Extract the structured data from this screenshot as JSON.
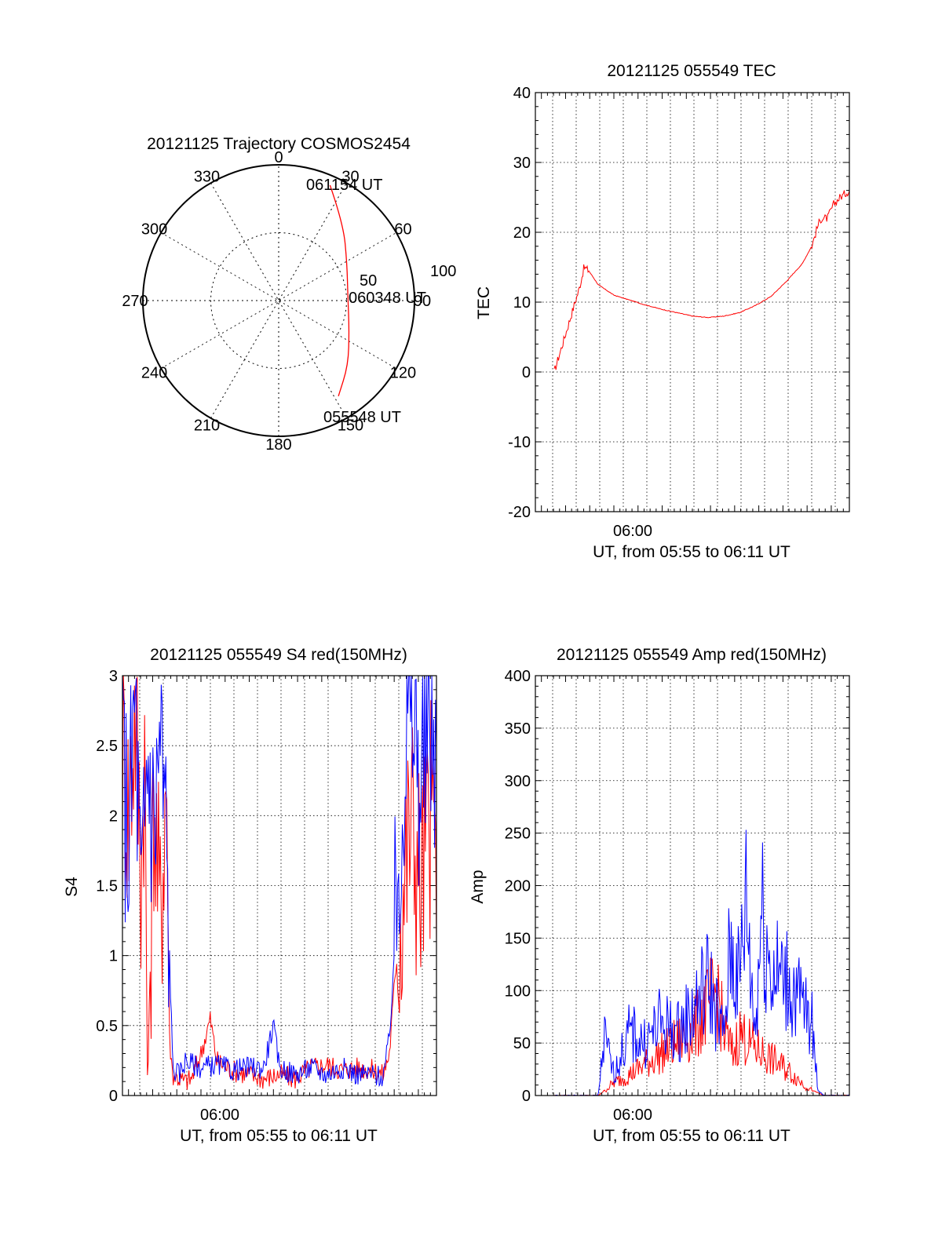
{
  "chart_data": [
    {
      "type": "polar",
      "title": "20121125 Trajectory COSMOS2454",
      "azimuth_labels": [
        "0",
        "30",
        "60",
        "90",
        "120",
        "150",
        "180",
        "210",
        "240",
        "270",
        "300",
        "330"
      ],
      "radial_labels": [
        "50",
        "100"
      ],
      "radial_max": 100,
      "grid": true,
      "trajectory_color": "#ff0000",
      "trajectory": [
        {
          "az": 24,
          "r": 93
        },
        {
          "az": 40,
          "r": 74
        },
        {
          "az": 62,
          "r": 57
        },
        {
          "az": 88,
          "r": 51
        },
        {
          "az": 112,
          "r": 56
        },
        {
          "az": 133,
          "r": 70
        },
        {
          "az": 148,
          "r": 83
        }
      ],
      "annotations": [
        "061154 UT",
        "060348 UT",
        "055548 UT"
      ]
    },
    {
      "type": "line",
      "title": "20121125 055549 TEC",
      "ylabel": "TEC",
      "xlabel": "UT, from 05:55 to 06:11 UT",
      "x_tick_labels": [
        "06:00"
      ],
      "ylim": [
        -20,
        40
      ],
      "yticks": [
        "40",
        "30",
        "20",
        "10",
        "0",
        "-10",
        "-20"
      ],
      "grid": true,
      "series": [
        {
          "color": "#ff0000",
          "x": [
            0.06,
            0.08,
            0.1,
            0.12,
            0.14,
            0.155,
            0.17,
            0.2,
            0.25,
            0.3,
            0.35,
            0.4,
            0.45,
            0.5,
            0.55,
            0.6,
            0.65,
            0.7,
            0.75,
            0.8,
            0.85,
            0.88,
            0.9,
            0.91,
            0.93,
            0.95,
            0.97,
            1.0
          ],
          "y": [
            0,
            3,
            6,
            9,
            12,
            15,
            14.5,
            12.5,
            11,
            10.3,
            9.6,
            9.0,
            8.5,
            8.0,
            7.8,
            8.0,
            8.5,
            9.5,
            10.8,
            13,
            15.5,
            18,
            21,
            22,
            22,
            24,
            25,
            26
          ]
        }
      ]
    },
    {
      "type": "line",
      "title": "20121125 055549 S4 red(150MHz)",
      "ylabel": "S4",
      "xlabel": "UT, from 05:55 to 06:11 UT",
      "x_tick_labels": [
        "06:00"
      ],
      "ylim": [
        0,
        3
      ],
      "yticks": [
        "3",
        "2.5",
        "2",
        "1.5",
        "1",
        "0.5",
        "0"
      ],
      "grid": true,
      "series": [
        {
          "color": "#ff0000",
          "x": [
            0.0,
            0.02,
            0.04,
            0.06,
            0.07,
            0.08,
            0.1,
            0.12,
            0.14,
            0.15,
            0.16,
            0.18,
            0.2,
            0.22,
            0.25,
            0.28,
            0.3,
            0.35,
            0.4,
            0.45,
            0.5,
            0.55,
            0.6,
            0.65,
            0.7,
            0.75,
            0.8,
            0.83,
            0.85,
            0.87,
            0.89,
            0.92,
            0.95,
            0.98,
            1.0
          ],
          "y": [
            2.5,
            2.0,
            2.8,
            1.6,
            2.6,
            0.0,
            2.2,
            1.2,
            2.4,
            0.4,
            0.15,
            0.12,
            0.1,
            0.12,
            0.3,
            0.55,
            0.25,
            0.18,
            0.15,
            0.12,
            0.15,
            0.12,
            0.2,
            0.22,
            0.18,
            0.2,
            0.18,
            0.15,
            0.3,
            0.9,
            1.4,
            2.0,
            1.5,
            2.0,
            1.8
          ]
        },
        {
          "color": "#0000ff",
          "x": [
            0.0,
            0.02,
            0.04,
            0.06,
            0.08,
            0.1,
            0.12,
            0.14,
            0.15,
            0.16,
            0.18,
            0.2,
            0.25,
            0.3,
            0.35,
            0.4,
            0.45,
            0.48,
            0.5,
            0.55,
            0.6,
            0.65,
            0.7,
            0.75,
            0.8,
            0.83,
            0.85,
            0.87,
            0.89,
            0.92,
            0.95,
            0.98,
            1.0
          ],
          "y": [
            2.4,
            1.8,
            2.9,
            1.2,
            2.5,
            1.9,
            2.6,
            1.8,
            1.0,
            0.2,
            0.15,
            0.25,
            0.2,
            0.22,
            0.18,
            0.2,
            0.2,
            0.5,
            0.2,
            0.15,
            0.2,
            0.15,
            0.2,
            0.15,
            0.15,
            0.13,
            0.4,
            1.2,
            2.2,
            2.8,
            2.2,
            2.7,
            2.5
          ]
        }
      ]
    },
    {
      "type": "line",
      "title": "20121125 055549 Amp red(150MHz)",
      "ylabel": "Amp",
      "xlabel": "UT, from 05:55 to 06:11 UT",
      "x_tick_labels": [
        "06:00"
      ],
      "ylim": [
        0,
        400
      ],
      "yticks": [
        "400",
        "350",
        "300",
        "250",
        "200",
        "150",
        "100",
        "50",
        "0"
      ],
      "grid": true,
      "series": [
        {
          "color": "#ff0000",
          "x": [
            0.06,
            0.2,
            0.25,
            0.3,
            0.35,
            0.4,
            0.45,
            0.5,
            0.55,
            0.58,
            0.6,
            0.63,
            0.65,
            0.7,
            0.75,
            0.8,
            0.85,
            0.88,
            0.92,
            1.0
          ],
          "y": [
            0,
            0,
            12,
            20,
            30,
            40,
            50,
            60,
            85,
            100,
            60,
            40,
            60,
            45,
            35,
            25,
            12,
            5,
            0,
            0
          ]
        },
        {
          "color": "#0000ff",
          "x": [
            0.06,
            0.2,
            0.22,
            0.25,
            0.3,
            0.35,
            0.4,
            0.45,
            0.5,
            0.55,
            0.6,
            0.62,
            0.65,
            0.67,
            0.7,
            0.72,
            0.75,
            0.8,
            0.85,
            0.88,
            0.9,
            0.92,
            1.0
          ],
          "y": [
            0,
            0,
            55,
            20,
            60,
            50,
            70,
            60,
            80,
            110,
            55,
            140,
            110,
            190,
            60,
            180,
            120,
            110,
            85,
            70,
            5,
            0,
            0
          ]
        }
      ]
    }
  ]
}
